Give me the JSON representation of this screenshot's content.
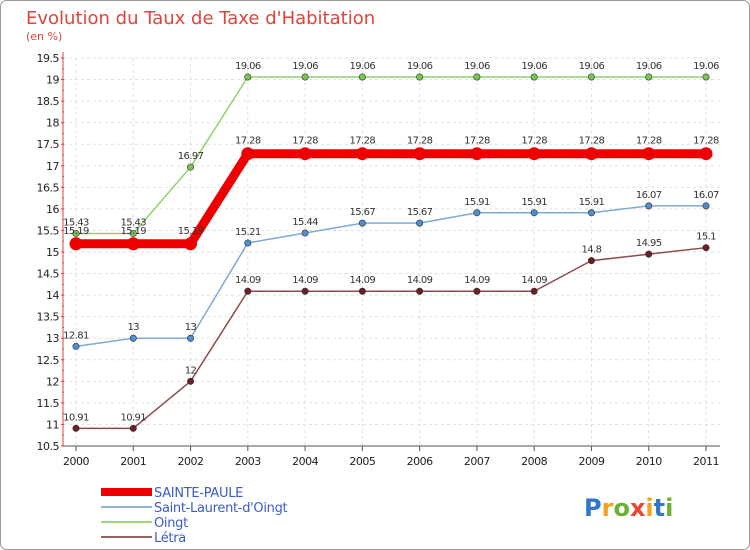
{
  "header": {
    "title": "Evolution du Taux de Taxe d'Habitation",
    "subtitle": "(en %)"
  },
  "logo": {
    "letters": [
      "P",
      "r",
      "o",
      "x",
      "i",
      "t",
      "i"
    ],
    "colors": [
      "#2f77c9",
      "#f2a21f",
      "#69b232",
      "#e84730",
      "#f2a21f",
      "#2f77c9",
      "#69b232"
    ]
  },
  "chart_data": {
    "type": "line",
    "title": "Evolution du Taux de Taxe d'Habitation",
    "subtitle": "(en %)",
    "xlabel": "",
    "ylabel": "",
    "categories": [
      "2000",
      "2001",
      "2002",
      "2003",
      "2004",
      "2005",
      "2006",
      "2007",
      "2008",
      "2009",
      "2010",
      "2011"
    ],
    "ylim": [
      10.5,
      19.5
    ],
    "yticks": [
      "10.5",
      "11",
      "11.5",
      "12",
      "12.5",
      "13",
      "13.5",
      "14",
      "14.5",
      "15",
      "15.5",
      "16",
      "16.5",
      "17",
      "17.5",
      "18",
      "18.5",
      "19",
      "19.5"
    ],
    "grid": true,
    "legend_position": "bottom-left",
    "series": [
      {
        "name": "Oingt",
        "color": "#8fd16a",
        "marker_color": "#7cc452",
        "values": [
          15.43,
          15.43,
          16.97,
          19.06,
          19.06,
          19.06,
          19.06,
          19.06,
          19.06,
          19.06,
          19.06,
          19.06
        ],
        "labels": [
          "15.43",
          "15.43",
          "16.97",
          "19.06",
          "19.06",
          "19.06",
          "19.06",
          "19.06",
          "19.06",
          "19.06",
          "19.06",
          "19.06"
        ]
      },
      {
        "name": "Saint-Laurent-d'Oingt",
        "color": "#7fa9d6",
        "marker_color": "#4f8fd0",
        "values": [
          12.81,
          13,
          13,
          15.21,
          15.44,
          15.67,
          15.67,
          15.91,
          15.91,
          15.91,
          16.07,
          16.07
        ],
        "labels": [
          "12.81",
          "13",
          "13",
          "15.21",
          "15.44",
          "15.67",
          "15.67",
          "15.91",
          "15.91",
          "15.91",
          "16.07",
          "16.07"
        ]
      },
      {
        "name": "Létra",
        "color": "#8c4a4a",
        "marker_color": "#6b1f24",
        "values": [
          10.91,
          10.91,
          12,
          14.09,
          14.09,
          14.09,
          14.09,
          14.09,
          14.09,
          14.8,
          14.95,
          15.1
        ],
        "labels": [
          "10.91",
          "10.91",
          "12",
          "14.09",
          "14.09",
          "14.09",
          "14.09",
          "14.09",
          "14.09",
          "14.8",
          "14.95",
          "15.1"
        ]
      },
      {
        "name": "SAINTE-PAULE",
        "color": "#ee0000",
        "marker_color": "#ee0000",
        "values": [
          15.19,
          15.19,
          15.19,
          17.28,
          17.28,
          17.28,
          17.28,
          17.28,
          17.28,
          17.28,
          17.28,
          17.28
        ],
        "labels": [
          "15.19",
          "15.19",
          "15.19",
          "17.28",
          "17.28",
          "17.28",
          "17.28",
          "17.28",
          "17.28",
          "17.28",
          "17.28",
          "17.28"
        ]
      }
    ],
    "legend": [
      "SAINTE-PAULE",
      "Saint-Laurent-d'Oingt",
      "Oingt",
      "Létra"
    ]
  }
}
